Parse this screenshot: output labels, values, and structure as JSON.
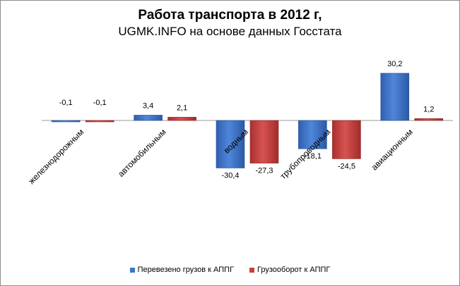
{
  "chart_data": {
    "type": "bar",
    "title": "Работа транспорта в 2012 г,",
    "subtitle": "UGMK.INFO на основе данных Госстата",
    "categories": [
      "железнодорожным",
      "автомобильным",
      "водным",
      "трубопроводным",
      "авиационным"
    ],
    "series": [
      {
        "name": "Перевезено грузов к АППГ",
        "color": "#3f75c9",
        "values": [
          -0.1,
          3.4,
          -30.4,
          -18.1,
          30.2
        ],
        "labels": [
          "-0,1",
          "3,4",
          "-30,4",
          "-18,1",
          "30,2"
        ]
      },
      {
        "name": "Грузооборот к АППГ",
        "color": "#c9403c",
        "values": [
          -0.1,
          2.1,
          -27.3,
          -24.5,
          1.2
        ],
        "labels": [
          "-0,1",
          "2,1",
          "-27,3",
          "-24,5",
          "1,2"
        ]
      }
    ],
    "xlabel": "",
    "ylabel": "",
    "ylim": [
      -35,
      35
    ],
    "grid": false,
    "legend": "bottom"
  }
}
